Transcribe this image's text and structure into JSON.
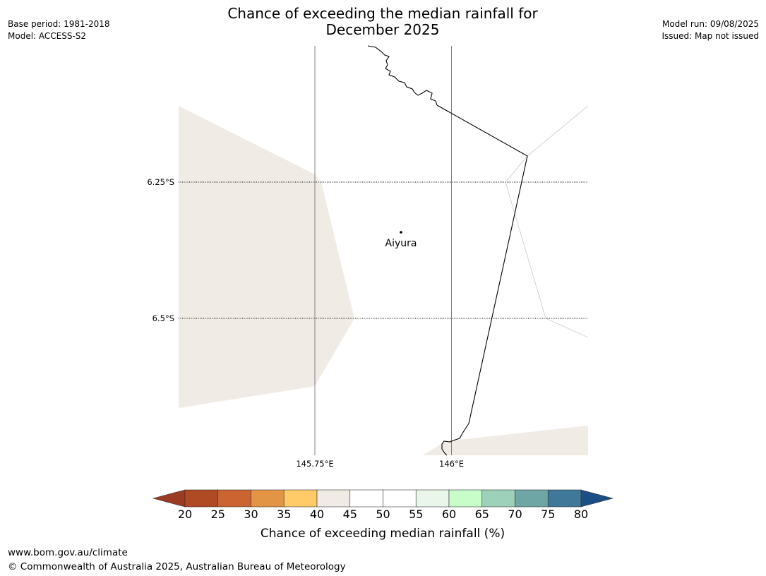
{
  "header": {
    "title_line1": "Chance of exceeding the median rainfall for",
    "title_line2": "December 2025",
    "base_period": "Base period: 1981-2018",
    "model": "Model: ACCESS-S2",
    "model_run": "Model run: 09/08/2025",
    "issued": "Issued: Map not issued"
  },
  "map": {
    "lat_labels": [
      "6.25°S",
      "6.5°S"
    ],
    "lon_labels": [
      "145.75°E",
      "146°E"
    ],
    "place": "Aiyura",
    "colors": {
      "band_35_40": "#f0ebe5",
      "coastline": "#000000",
      "gridline": "#808080"
    }
  },
  "colorbar": {
    "title": "Chance of exceeding median rainfall (%)",
    "ticks": [
      "20",
      "25",
      "30",
      "35",
      "40",
      "45",
      "50",
      "55",
      "60",
      "65",
      "70",
      "75",
      "80"
    ],
    "low_extend_color": "#9c3a22",
    "high_extend_color": "#1a4f85",
    "colors": [
      "#b04a25",
      "#cc6431",
      "#e39546",
      "#fecb68",
      "#f0ebe5",
      "#ffffff",
      "#ffffff",
      "#eaf6ea",
      "#c8fcc8",
      "#9dd1ba",
      "#6ea6a6",
      "#3f7899"
    ]
  },
  "footer": {
    "url": "www.bom.gov.au/climate",
    "copyright": "© Commonwealth of Australia 2025, Australian Bureau of Meteorology"
  }
}
